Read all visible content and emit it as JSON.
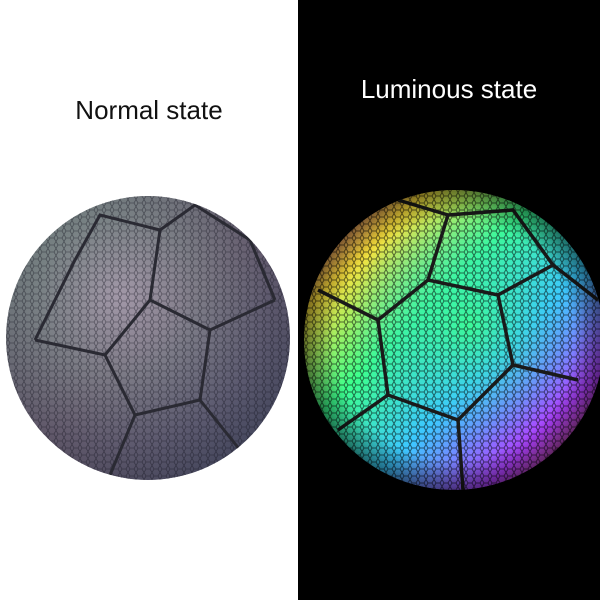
{
  "panels": {
    "normal": {
      "label": "Normal state",
      "background": "#ffffff",
      "text_color": "#111111"
    },
    "luminous": {
      "label": "Luminous state",
      "background": "#000000",
      "text_color": "#ffffff"
    }
  },
  "colors": {
    "normal_ball": [
      "#8a8a94",
      "#5a6468",
      "#3c3f48",
      "#a88a9a"
    ],
    "luminous_ball": [
      "#ff3cc8",
      "#3cc8ff",
      "#3cff8c",
      "#ffe03c",
      "#b040ff",
      "#ff6a3c"
    ]
  }
}
